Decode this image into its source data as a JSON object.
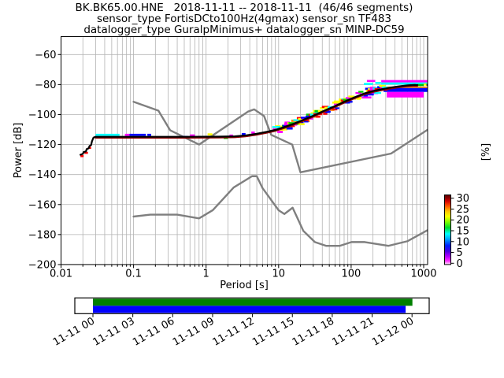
{
  "title": {
    "line1": "BK.BK65.00.HNE   2018-11-11 -- 2018-11-11  (46/46 segments)",
    "line2": "sensor_type FortisDCto100Hz(4gmax) sensor_sn TF483",
    "line3": "datalogger_type GuralpMinimus+ datalogger_sn MINP-DC59"
  },
  "axes": {
    "ylabel": "Power [dB]",
    "xlabel": "Period [s]",
    "y_tick_labels": [
      "−60",
      "−80",
      "−100",
      "−120",
      "−140",
      "−160",
      "−180",
      "−200"
    ],
    "y_tick_values": [
      -60,
      -80,
      -100,
      -120,
      -140,
      -160,
      -180,
      -200
    ],
    "x_tick_labels": [
      "0.01",
      "0.1",
      "1",
      "10",
      "100",
      "1000"
    ],
    "x_tick_values": [
      0.01,
      0.1,
      1,
      10,
      100,
      1000
    ]
  },
  "colorbar": {
    "label": "[%]",
    "tick_labels": [
      "30",
      "25",
      "20",
      "15",
      "10",
      "5",
      "0"
    ],
    "tick_values": [
      30,
      25,
      20,
      15,
      10,
      5,
      0
    ],
    "gradient_top_to_bottom": [
      [
        0,
        "#5f0000"
      ],
      [
        0.045,
        "#8b0000"
      ],
      [
        0.09,
        "#d40000"
      ],
      [
        0.16,
        "#ff5500"
      ],
      [
        0.24,
        "#ffc800"
      ],
      [
        0.31,
        "#f8ff00"
      ],
      [
        0.39,
        "#7cff00"
      ],
      [
        0.47,
        "#00dc28"
      ],
      [
        0.56,
        "#00ffff"
      ],
      [
        0.64,
        "#009dff"
      ],
      [
        0.73,
        "#001eff"
      ],
      [
        0.81,
        "#4b00e1"
      ],
      [
        0.89,
        "#bb00ff"
      ],
      [
        0.95,
        "#ff30ff"
      ],
      [
        0.99,
        "#ffccff"
      ],
      [
        1,
        "#ffffff"
      ]
    ]
  },
  "timeline": {
    "labels": [
      "11-11 00",
      "11-11 03",
      "11-11 06",
      "11-11 09",
      "11-11 12",
      "11-11 15",
      "11-11 18",
      "11-11 21",
      "11-12 00"
    ],
    "bars": [
      {
        "name": "data-coverage",
        "color": "#007f00",
        "start": 0,
        "end": 1.0
      },
      {
        "name": "processed-segments",
        "color": "#0000ff",
        "start": 0,
        "end": 0.98
      }
    ]
  },
  "chart_data": {
    "type": "line",
    "title": "BK.BK65.00.HNE 2018-11-11 -- 2018-11-11 (46/46 segments)",
    "subtitle": "sensor_type FortisDCto100Hz(4gmax) sensor_sn TF483 | datalogger_type GuralpMinimus+ datalogger_sn MINP-DC59",
    "xlabel": "Period [s]",
    "ylabel": "Power [dB]",
    "xscale": "log",
    "xlim": [
      0.01,
      1150
    ],
    "ylim": [
      -200,
      -48
    ],
    "grid": true,
    "colorbar_range": [
      0,
      30
    ],
    "series": [
      {
        "name": "psd_mode",
        "color": "#000000",
        "width": 2.2,
        "points": [
          [
            0.0185,
            -126.8
          ],
          [
            0.02,
            -126.2
          ],
          [
            0.0205,
            -125.0
          ],
          [
            0.022,
            -124.6
          ],
          [
            0.0226,
            -123.0
          ],
          [
            0.024,
            -122.5
          ],
          [
            0.0247,
            -121.0
          ],
          [
            0.026,
            -120.3
          ],
          [
            0.0267,
            -117.8
          ],
          [
            0.028,
            -115.4
          ],
          [
            0.03,
            -114.8
          ],
          [
            0.1,
            -114.8
          ],
          [
            0.5,
            -114.8
          ],
          [
            1.5,
            -114.7
          ],
          [
            2.5,
            -114.5
          ],
          [
            3.5,
            -113.9
          ],
          [
            5,
            -112.8
          ],
          [
            7,
            -111.4
          ],
          [
            9,
            -110.2
          ],
          [
            12,
            -108.3
          ],
          [
            16,
            -106.2
          ],
          [
            22,
            -103.5
          ],
          [
            30,
            -100.8
          ],
          [
            42,
            -97.5
          ],
          [
            58,
            -94.6
          ],
          [
            80,
            -91.5
          ],
          [
            110,
            -88.6
          ],
          [
            150,
            -86.0
          ],
          [
            200,
            -84.3
          ],
          [
            270,
            -83.0
          ],
          [
            350,
            -82.0
          ],
          [
            450,
            -81.2
          ],
          [
            600,
            -80.5
          ],
          [
            750,
            -80.2
          ],
          [
            820,
            -80.3
          ]
        ]
      },
      {
        "name": "nlnm_low_noise_model",
        "color": "#7f7f7f",
        "width": 2.4,
        "points": [
          [
            0.1,
            -168.0
          ],
          [
            0.17,
            -166.7
          ],
          [
            0.4,
            -166.7
          ],
          [
            0.8,
            -169.2
          ],
          [
            1.24,
            -163.7
          ],
          [
            2.4,
            -148.6
          ],
          [
            4.3,
            -141.1
          ],
          [
            5.0,
            -141.1
          ],
          [
            6.0,
            -149.0
          ],
          [
            10.0,
            -163.8
          ],
          [
            12.0,
            -166.3
          ],
          [
            15.6,
            -162.1
          ],
          [
            21.9,
            -177.5
          ],
          [
            31.6,
            -185.0
          ],
          [
            45.0,
            -187.5
          ],
          [
            70.0,
            -187.5
          ],
          [
            101.0,
            -185.0
          ],
          [
            154.0,
            -185.0
          ],
          [
            328.0,
            -187.5
          ],
          [
            600.0,
            -184.4
          ],
          [
            1150,
            -176.9
          ]
        ]
      },
      {
        "name": "nhnm_high_noise_model",
        "color": "#7f7f7f",
        "width": 2.4,
        "points": [
          [
            0.1,
            -91.5
          ],
          [
            0.22,
            -97.4
          ],
          [
            0.32,
            -110.5
          ],
          [
            0.8,
            -120.0
          ],
          [
            3.8,
            -98.0
          ],
          [
            4.6,
            -96.5
          ],
          [
            6.3,
            -101.0
          ],
          [
            7.9,
            -113.5
          ],
          [
            15.4,
            -120.0
          ],
          [
            20.0,
            -138.5
          ],
          [
            354.8,
            -126.0
          ],
          [
            1150,
            -109.9
          ]
        ]
      }
    ],
    "histogram": {
      "mode_shadow": {
        "color": "#8b0000",
        "offset_db": 0.8,
        "width": 1.6,
        "p_start": 0.029,
        "p_end": 820
      },
      "stripes": [
        [
          260,
          1130,
          -77.0,
          -78.6,
          "#ff00ff"
        ],
        [
          260,
          1130,
          -78.6,
          -80.0,
          "#00ffff"
        ],
        [
          300,
          1130,
          -81.3,
          -82.3,
          "#ff8800"
        ],
        [
          280,
          1130,
          -82.3,
          -84.9,
          "#0000ff"
        ],
        [
          310,
          1000,
          -84.9,
          -88.6,
          "#ff00ff"
        ]
      ],
      "dashes": [
        [
          0.03,
          0.064,
          -113.5,
          "#00ffff"
        ],
        [
          0.076,
          0.088,
          -113.5,
          "#ff00ff"
        ],
        [
          0.088,
          0.148,
          -113.5,
          "#0000ff"
        ],
        [
          0.155,
          0.175,
          -113.5,
          "#0000ff"
        ],
        [
          0.46,
          0.56,
          -114.9,
          "#0000ff"
        ],
        [
          0.6,
          0.7,
          -113.9,
          "#ff00ff"
        ],
        [
          0.95,
          1.1,
          -114.9,
          "#0000ff"
        ],
        [
          1.05,
          1.22,
          -113.2,
          "#ffff00"
        ],
        [
          1.75,
          2.0,
          -115.6,
          "#00cc00"
        ],
        [
          2.1,
          2.35,
          -114.0,
          "#ff00ff"
        ],
        [
          3.1,
          3.5,
          -113.0,
          "#0000ff"
        ],
        [
          4.2,
          4.7,
          -112.0,
          "#ff00ff"
        ],
        [
          8.3,
          9.3,
          -109.8,
          "#ff00ff"
        ],
        [
          30,
          40,
          -99.7,
          "#ff0000"
        ],
        [
          55,
          75,
          -92.0,
          "#ffff00"
        ],
        [
          78,
          98,
          -90.2,
          "#00cc00"
        ],
        [
          140,
          190,
          -88.6,
          "#ff00ff"
        ],
        [
          150,
          205,
          -86.6,
          "#0000ff"
        ],
        [
          150,
          200,
          -79.6,
          "#00ffff"
        ],
        [
          165,
          215,
          -77.6,
          "#ff00ff"
        ],
        [
          215,
          258,
          -78.9,
          "#00ffff"
        ],
        [
          0.0185,
          0.0205,
          -127.7,
          "#ff0000"
        ],
        [
          0.021,
          0.0235,
          -125.5,
          "#ff0000"
        ],
        [
          0.0235,
          0.026,
          -122.2,
          "#ff0000"
        ],
        [
          820,
          1000,
          -80.3,
          "#00bb00"
        ],
        [
          1000,
          1095,
          -80.0,
          "#ffff00"
        ],
        [
          1095,
          1130,
          -80.2,
          "#111111"
        ]
      ],
      "scatter_band": {
        "p_min": 9,
        "p_max": 290,
        "steps": 46,
        "max_offset_db": 2.4,
        "colors": [
          "#ff00ff",
          "#ff00ff",
          "#0000ff",
          "#0000ff",
          "#00ffff",
          "#00cc00",
          "#ff0000",
          "#ffff00",
          "#ff8800"
        ]
      }
    }
  }
}
